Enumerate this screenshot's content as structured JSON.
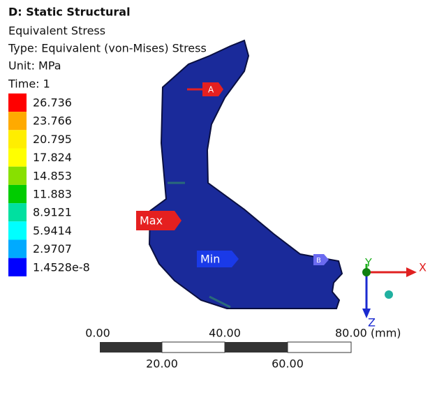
{
  "header": {
    "title": "D: Static Structural",
    "lines": [
      "Equivalent Stress",
      "Type: Equivalent (von-Mises) Stress",
      "Unit: MPa",
      "Time: 1"
    ]
  },
  "legend": [
    {
      "label": "26.736",
      "color": "#ff0000"
    },
    {
      "label": "23.766",
      "color": "#ffaa00"
    },
    {
      "label": "20.795",
      "color": "#ffee00"
    },
    {
      "label": "17.824",
      "color": "#ffff00"
    },
    {
      "label": "14.853",
      "color": "#88e000"
    },
    {
      "label": "11.883",
      "color": "#00cc00"
    },
    {
      "label": "8.9121",
      "color": "#00e0a0"
    },
    {
      "label": "5.9414",
      "color": "#00ffff"
    },
    {
      "label": "2.9707",
      "color": "#00aaff"
    },
    {
      "label": "1.4528e-8",
      "color": "#0000ff"
    }
  ],
  "probes": {
    "a": "A",
    "b": "B",
    "max": "Max",
    "min": "Min"
  },
  "triad": {
    "x": "X",
    "y": "Y",
    "z": "Z"
  },
  "scale_bar": {
    "top": [
      "0.00",
      "40.00",
      "80.00 (mm)"
    ],
    "bottom": [
      "20.00",
      "60.00"
    ]
  }
}
